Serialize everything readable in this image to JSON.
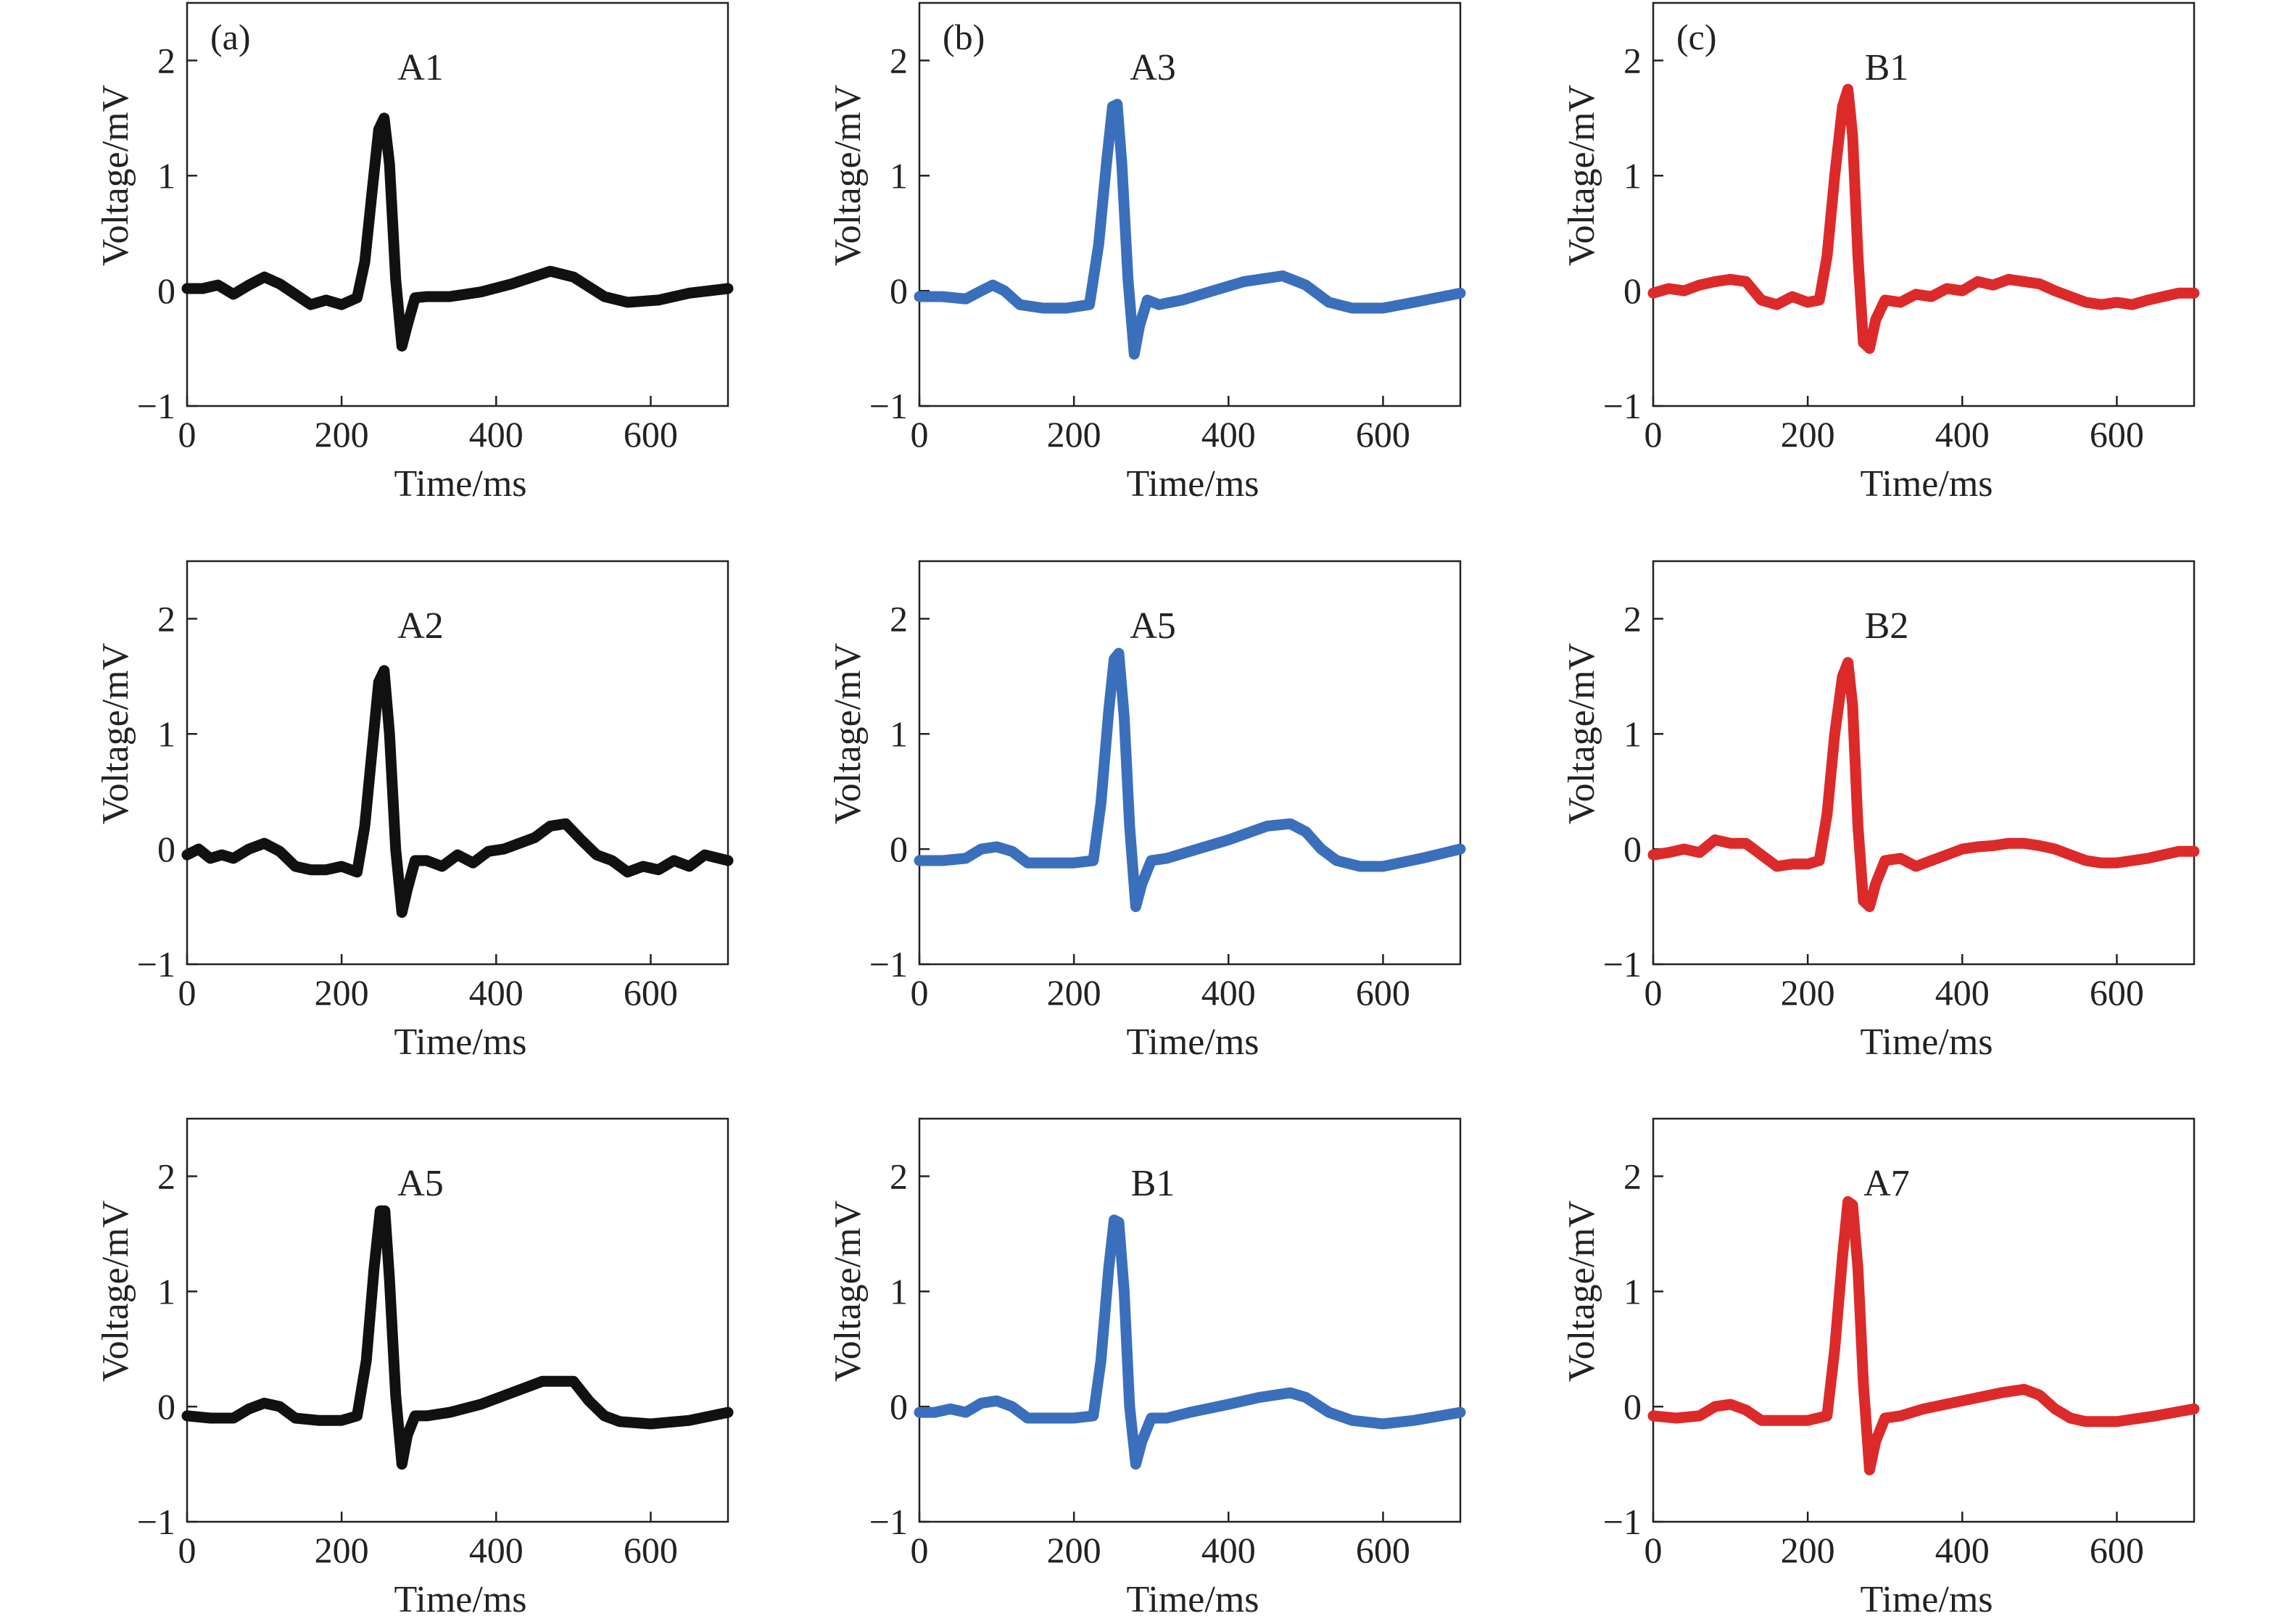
{
  "figure": {
    "columns": [
      {
        "panel_label": "(a)",
        "color": "#111111"
      },
      {
        "panel_label": "(b)",
        "color": "#3a6fbb"
      },
      {
        "panel_label": "(c)",
        "color": "#dc2a2a"
      }
    ]
  },
  "chart_data": [
    {
      "type": "line",
      "panel_label": "(a)",
      "lead_label": "A1",
      "color": "#111111",
      "xlabel": "Time/ms",
      "ylabel": "Voltage/mV",
      "xlim": [
        0,
        700
      ],
      "ylim": [
        -1,
        2.5
      ],
      "xticks": [
        0,
        200,
        400,
        600
      ],
      "yticks": [
        -1,
        0,
        1,
        2
      ],
      "grid": false,
      "series": [
        {
          "x": [
            0,
            20,
            40,
            60,
            80,
            100,
            120,
            140,
            160,
            180,
            200,
            220,
            230,
            240,
            248,
            255,
            262,
            270,
            278,
            285,
            295,
            310,
            340,
            380,
            420,
            470,
            500,
            540,
            570,
            610,
            650,
            700
          ],
          "y": [
            0.02,
            0.02,
            0.05,
            -0.03,
            0.05,
            0.12,
            0.06,
            -0.03,
            -0.12,
            -0.08,
            -0.12,
            -0.06,
            0.25,
            0.9,
            1.4,
            1.5,
            1.1,
            0.1,
            -0.48,
            -0.3,
            -0.06,
            -0.05,
            -0.05,
            -0.01,
            0.06,
            0.17,
            0.12,
            -0.05,
            -0.1,
            -0.08,
            -0.02,
            0.02
          ]
        }
      ]
    },
    {
      "type": "line",
      "panel_label": "(b)",
      "lead_label": "A3",
      "color": "#3a6fbb",
      "xlabel": "Time/ms",
      "ylabel": "Voltage/mV",
      "xlim": [
        0,
        700
      ],
      "ylim": [
        -1,
        2.5
      ],
      "xticks": [
        0,
        200,
        400,
        600
      ],
      "yticks": [
        -1,
        0,
        1,
        2
      ],
      "grid": false,
      "series": [
        {
          "x": [
            0,
            30,
            60,
            80,
            95,
            110,
            130,
            160,
            190,
            220,
            232,
            242,
            250,
            256,
            262,
            270,
            278,
            285,
            295,
            310,
            340,
            380,
            420,
            470,
            500,
            530,
            560,
            600,
            640,
            700
          ],
          "y": [
            -0.05,
            -0.05,
            -0.07,
            0.0,
            0.05,
            0.0,
            -0.12,
            -0.15,
            -0.15,
            -0.12,
            0.4,
            1.1,
            1.6,
            1.62,
            1.1,
            0.1,
            -0.55,
            -0.3,
            -0.08,
            -0.12,
            -0.08,
            0.0,
            0.08,
            0.13,
            0.05,
            -0.1,
            -0.15,
            -0.15,
            -0.1,
            -0.02
          ]
        }
      ]
    },
    {
      "type": "line",
      "panel_label": "(c)",
      "lead_label": "B1",
      "color": "#dc2a2a",
      "xlabel": "Time/ms",
      "ylabel": "Voltage/mV",
      "xlim": [
        0,
        700
      ],
      "ylim": [
        -1,
        2.5
      ],
      "xticks": [
        0,
        200,
        400,
        600
      ],
      "yticks": [
        -1,
        0,
        1,
        2
      ],
      "grid": false,
      "series": [
        {
          "x": [
            0,
            20,
            40,
            60,
            80,
            100,
            120,
            140,
            160,
            180,
            200,
            215,
            225,
            235,
            245,
            252,
            258,
            265,
            272,
            280,
            288,
            300,
            320,
            340,
            360,
            380,
            400,
            420,
            440,
            460,
            480,
            500,
            520,
            540,
            560,
            580,
            600,
            620,
            640,
            660,
            680,
            700
          ],
          "y": [
            -0.02,
            0.02,
            0.0,
            0.05,
            0.08,
            0.1,
            0.08,
            -0.08,
            -0.12,
            -0.05,
            -0.1,
            -0.08,
            0.3,
            1.0,
            1.6,
            1.75,
            1.35,
            0.3,
            -0.45,
            -0.5,
            -0.25,
            -0.08,
            -0.1,
            -0.03,
            -0.05,
            0.02,
            0.0,
            0.08,
            0.05,
            0.1,
            0.08,
            0.06,
            0.0,
            -0.05,
            -0.1,
            -0.12,
            -0.1,
            -0.12,
            -0.08,
            -0.05,
            -0.02,
            -0.02
          ]
        }
      ]
    },
    {
      "type": "line",
      "panel_label": "",
      "lead_label": "A2",
      "color": "#111111",
      "xlabel": "Time/ms",
      "ylabel": "Voltage/mV",
      "xlim": [
        0,
        700
      ],
      "ylim": [
        -1,
        2.5
      ],
      "xticks": [
        0,
        200,
        400,
        600
      ],
      "yticks": [
        -1,
        0,
        1,
        2
      ],
      "grid": false,
      "series": [
        {
          "x": [
            0,
            15,
            30,
            45,
            60,
            80,
            100,
            120,
            140,
            160,
            180,
            200,
            220,
            230,
            240,
            248,
            255,
            262,
            270,
            278,
            285,
            295,
            310,
            330,
            350,
            370,
            390,
            410,
            430,
            450,
            470,
            490,
            510,
            530,
            550,
            570,
            590,
            610,
            630,
            650,
            670,
            700
          ],
          "y": [
            -0.05,
            0.0,
            -0.08,
            -0.05,
            -0.08,
            0.0,
            0.05,
            -0.02,
            -0.15,
            -0.18,
            -0.18,
            -0.15,
            -0.2,
            0.2,
            0.9,
            1.45,
            1.55,
            1.0,
            0.0,
            -0.55,
            -0.35,
            -0.1,
            -0.1,
            -0.15,
            -0.05,
            -0.12,
            -0.02,
            0.0,
            0.05,
            0.1,
            0.2,
            0.22,
            0.08,
            -0.05,
            -0.1,
            -0.2,
            -0.15,
            -0.18,
            -0.1,
            -0.15,
            -0.05,
            -0.1
          ]
        }
      ]
    },
    {
      "type": "line",
      "panel_label": "",
      "lead_label": "A5",
      "color": "#3a6fbb",
      "xlabel": "Time/ms",
      "ylabel": "Voltage/mV",
      "xlim": [
        0,
        700
      ],
      "ylim": [
        -1,
        2.5
      ],
      "xticks": [
        0,
        200,
        400,
        600
      ],
      "yticks": [
        -1,
        0,
        1,
        2
      ],
      "grid": false,
      "series": [
        {
          "x": [
            0,
            30,
            60,
            80,
            100,
            120,
            140,
            170,
            200,
            225,
            235,
            245,
            252,
            258,
            265,
            272,
            280,
            288,
            300,
            320,
            350,
            400,
            450,
            480,
            500,
            520,
            540,
            570,
            600,
            650,
            700
          ],
          "y": [
            -0.1,
            -0.1,
            -0.08,
            0.0,
            0.02,
            -0.02,
            -0.12,
            -0.12,
            -0.12,
            -0.1,
            0.4,
            1.2,
            1.65,
            1.7,
            1.15,
            0.2,
            -0.5,
            -0.3,
            -0.1,
            -0.08,
            -0.02,
            0.08,
            0.2,
            0.22,
            0.15,
            0.0,
            -0.1,
            -0.15,
            -0.15,
            -0.08,
            0.0
          ]
        }
      ]
    },
    {
      "type": "line",
      "panel_label": "",
      "lead_label": "B2",
      "color": "#dc2a2a",
      "xlabel": "Time/ms",
      "ylabel": "Voltage/mV",
      "xlim": [
        0,
        700
      ],
      "ylim": [
        -1,
        2.5
      ],
      "xticks": [
        0,
        200,
        400,
        600
      ],
      "yticks": [
        -1,
        0,
        1,
        2
      ],
      "grid": false,
      "series": [
        {
          "x": [
            0,
            20,
            40,
            60,
            80,
            100,
            120,
            140,
            160,
            180,
            200,
            215,
            225,
            235,
            245,
            252,
            258,
            265,
            272,
            280,
            288,
            300,
            320,
            340,
            360,
            380,
            400,
            420,
            440,
            460,
            480,
            500,
            520,
            540,
            560,
            580,
            600,
            620,
            640,
            660,
            680,
            700
          ],
          "y": [
            -0.05,
            -0.03,
            0.0,
            -0.03,
            0.08,
            0.05,
            0.05,
            -0.05,
            -0.15,
            -0.13,
            -0.13,
            -0.1,
            0.3,
            1.0,
            1.5,
            1.62,
            1.25,
            0.2,
            -0.45,
            -0.5,
            -0.3,
            -0.1,
            -0.08,
            -0.15,
            -0.1,
            -0.05,
            0.0,
            0.02,
            0.03,
            0.05,
            0.05,
            0.03,
            0.0,
            -0.05,
            -0.1,
            -0.12,
            -0.12,
            -0.1,
            -0.08,
            -0.05,
            -0.02,
            -0.02
          ]
        }
      ]
    },
    {
      "type": "line",
      "panel_label": "",
      "lead_label": "A5",
      "color": "#111111",
      "xlabel": "Time/ms",
      "ylabel": "Voltage/mV",
      "xlim": [
        0,
        700
      ],
      "ylim": [
        -1,
        2.5
      ],
      "xticks": [
        0,
        200,
        400,
        600
      ],
      "yticks": [
        -1,
        0,
        1,
        2
      ],
      "grid": false,
      "series": [
        {
          "x": [
            0,
            30,
            60,
            80,
            100,
            120,
            140,
            170,
            200,
            220,
            232,
            242,
            250,
            256,
            262,
            270,
            278,
            285,
            295,
            310,
            340,
            380,
            420,
            460,
            500,
            520,
            540,
            560,
            600,
            650,
            700
          ],
          "y": [
            -0.08,
            -0.1,
            -0.1,
            -0.02,
            0.03,
            0.0,
            -0.1,
            -0.12,
            -0.12,
            -0.08,
            0.4,
            1.2,
            1.7,
            1.7,
            1.1,
            0.1,
            -0.5,
            -0.25,
            -0.08,
            -0.08,
            -0.05,
            0.02,
            0.12,
            0.22,
            0.22,
            0.05,
            -0.08,
            -0.13,
            -0.15,
            -0.12,
            -0.05
          ]
        }
      ]
    },
    {
      "type": "line",
      "panel_label": "",
      "lead_label": "B1",
      "color": "#3a6fbb",
      "xlabel": "Time/ms",
      "ylabel": "Voltage/mV",
      "xlim": [
        0,
        700
      ],
      "ylim": [
        -1,
        2.5
      ],
      "xticks": [
        0,
        200,
        400,
        600
      ],
      "yticks": [
        -1,
        0,
        1,
        2
      ],
      "grid": false,
      "series": [
        {
          "x": [
            0,
            20,
            40,
            60,
            80,
            100,
            120,
            140,
            170,
            200,
            225,
            235,
            245,
            252,
            258,
            265,
            272,
            280,
            288,
            300,
            320,
            350,
            400,
            440,
            480,
            500,
            530,
            560,
            600,
            640,
            700
          ],
          "y": [
            -0.05,
            -0.05,
            -0.02,
            -0.05,
            0.03,
            0.05,
            0.0,
            -0.1,
            -0.1,
            -0.1,
            -0.08,
            0.4,
            1.2,
            1.62,
            1.6,
            1.0,
            0.0,
            -0.5,
            -0.3,
            -0.1,
            -0.1,
            -0.05,
            0.02,
            0.08,
            0.12,
            0.08,
            -0.05,
            -0.12,
            -0.15,
            -0.12,
            -0.05
          ]
        }
      ]
    },
    {
      "type": "line",
      "panel_label": "",
      "lead_label": "A7",
      "color": "#dc2a2a",
      "xlabel": "Time/ms",
      "ylabel": "Voltage/mV",
      "xlim": [
        0,
        700
      ],
      "ylim": [
        -1,
        2.5
      ],
      "xticks": [
        0,
        200,
        400,
        600
      ],
      "yticks": [
        -1,
        0,
        1,
        2
      ],
      "grid": false,
      "series": [
        {
          "x": [
            0,
            30,
            60,
            80,
            100,
            120,
            140,
            170,
            200,
            225,
            235,
            245,
            252,
            258,
            265,
            272,
            280,
            288,
            300,
            320,
            350,
            400,
            450,
            480,
            500,
            520,
            540,
            560,
            600,
            650,
            700
          ],
          "y": [
            -0.08,
            -0.1,
            -0.08,
            0.0,
            0.02,
            -0.03,
            -0.12,
            -0.12,
            -0.12,
            -0.08,
            0.5,
            1.3,
            1.78,
            1.75,
            1.2,
            0.2,
            -0.55,
            -0.3,
            -0.1,
            -0.08,
            -0.02,
            0.05,
            0.12,
            0.15,
            0.1,
            -0.02,
            -0.1,
            -0.13,
            -0.13,
            -0.08,
            -0.02
          ]
        }
      ]
    }
  ]
}
